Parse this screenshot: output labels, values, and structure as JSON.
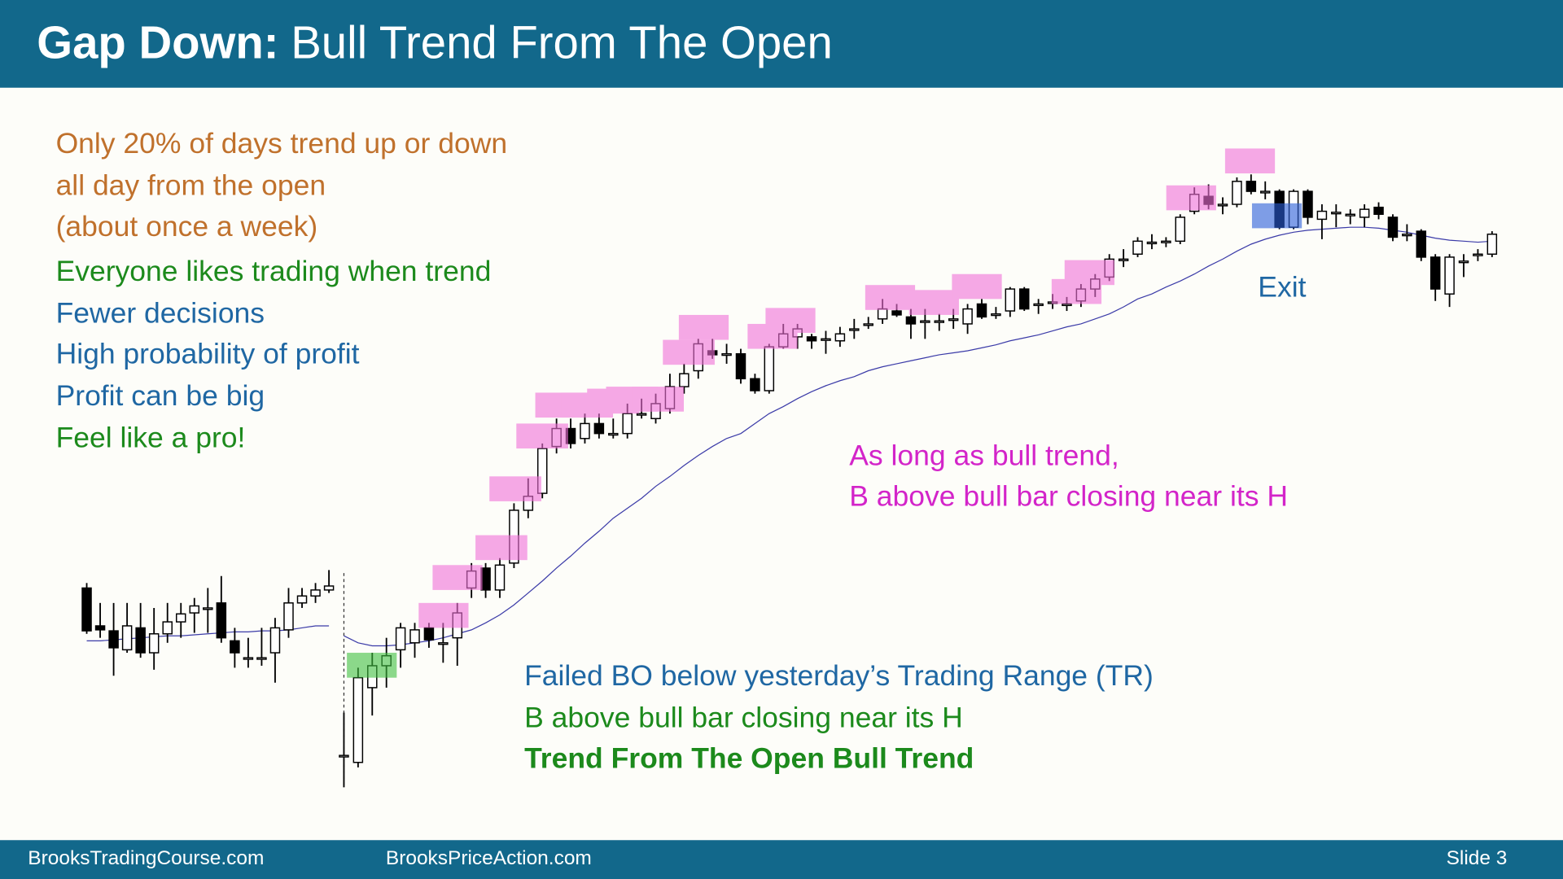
{
  "header": {
    "title_bold": "Gap Down:",
    "title_rest": "Bull Trend From The Open"
  },
  "notes": [
    "Only 20% of days trend up or down",
    "all day from the open",
    "(about once a week)",
    "Everyone likes trading when trend",
    "Fewer decisions",
    "High probability of profit",
    "Profit can be big",
    "Feel like a pro!"
  ],
  "annotations": {
    "middle": [
      "As long as bull trend,",
      "B above bull bar closing near its H"
    ],
    "exit": "Exit",
    "bottom": [
      "Failed BO below yesterday’s Trading Range (TR)",
      "B above bull bar closing near its H",
      "Trend From The Open Bull Trend"
    ]
  },
  "chart_data": {
    "type": "candlestick",
    "ylim": [
      0,
      900
    ],
    "candles": [
      [
        [
          310,
          315,
          264,
          267
        ],
        [
          272,
          295,
          260,
          268
        ],
        [
          267,
          295,
          222,
          250
        ],
        [
          248,
          295,
          245,
          272
        ],
        [
          270,
          295,
          240,
          245
        ],
        [
          245,
          290,
          228,
          264
        ],
        [
          264,
          295,
          255,
          276
        ],
        [
          276,
          295,
          260,
          284
        ],
        [
          285,
          300,
          265,
          292
        ],
        [
          290,
          310,
          265,
          290
        ],
        [
          295,
          322,
          255,
          260
        ],
        [
          257,
          270,
          230,
          245
        ],
        [
          240,
          260,
          230,
          240
        ],
        [
          240,
          270,
          232,
          240
        ],
        [
          245,
          280,
          215,
          270
        ],
        [
          268,
          310,
          260,
          295
        ],
        [
          295,
          310,
          290,
          302
        ],
        [
          302,
          315,
          295,
          308
        ],
        [
          308,
          328,
          305,
          312
        ]
      ],
      [
        [
          142,
          185,
          110,
          142
        ],
        [
          135,
          230,
          130,
          220
        ],
        [
          210,
          245,
          182,
          232
        ],
        [
          232,
          260,
          210,
          242
        ],
        [
          248,
          275,
          230,
          270
        ],
        [
          255,
          275,
          240,
          268
        ],
        [
          270,
          275,
          250,
          258
        ],
        [
          255,
          275,
          235,
          255
        ],
        [
          260,
          295,
          232,
          285
        ],
        [
          310,
          335,
          300,
          327
        ],
        [
          330,
          335,
          300,
          308
        ],
        [
          308,
          340,
          300,
          333
        ],
        [
          335,
          395,
          330,
          388
        ],
        [
          388,
          420,
          380,
          402
        ],
        [
          405,
          455,
          400,
          450
        ],
        [
          452,
          480,
          445,
          470
        ],
        [
          470,
          480,
          450,
          455
        ],
        [
          460,
          485,
          455,
          475
        ],
        [
          475,
          485,
          460,
          465
        ],
        [
          465,
          480,
          460,
          465
        ],
        [
          465,
          495,
          460,
          485
        ],
        [
          485,
          500,
          480,
          485
        ],
        [
          480,
          505,
          475,
          495
        ],
        [
          490,
          525,
          485,
          512
        ],
        [
          512,
          535,
          505,
          525
        ],
        [
          528,
          560,
          520,
          555
        ],
        [
          548,
          560,
          540,
          544
        ],
        [
          545,
          555,
          535,
          545
        ],
        [
          545,
          550,
          515,
          520
        ],
        [
          520,
          525,
          505,
          508
        ],
        [
          508,
          555,
          505,
          552
        ],
        [
          552,
          575,
          550,
          565
        ],
        [
          562,
          575,
          550,
          570
        ],
        [
          562,
          565,
          550,
          558
        ],
        [
          560,
          568,
          545,
          560
        ],
        [
          558,
          572,
          552,
          565
        ],
        [
          570,
          580,
          560,
          570
        ],
        [
          575,
          582,
          570,
          575
        ],
        [
          580,
          600,
          575,
          590
        ],
        [
          588,
          595,
          582,
          584
        ],
        [
          582,
          590,
          560,
          575
        ],
        [
          578,
          590,
          560,
          578
        ],
        [
          578,
          585,
          568,
          578
        ],
        [
          580,
          590,
          570,
          580
        ],
        [
          575,
          595,
          565,
          590
        ],
        [
          595,
          600,
          580,
          582
        ],
        [
          585,
          592,
          580,
          585
        ],
        [
          588,
          612,
          582,
          610
        ],
        [
          610,
          612,
          588,
          590
        ],
        [
          595,
          600,
          585,
          595
        ],
        [
          597,
          605,
          590,
          597
        ],
        [
          595,
          602,
          588,
          595
        ],
        [
          598,
          615,
          592,
          610
        ],
        [
          610,
          625,
          602,
          620
        ],
        [
          622,
          645,
          618,
          640
        ],
        [
          640,
          650,
          632,
          640
        ],
        [
          645,
          662,
          642,
          658
        ],
        [
          657,
          665,
          650,
          657
        ],
        [
          658,
          662,
          652,
          658
        ],
        [
          658,
          685,
          655,
          682
        ],
        [
          688,
          712,
          685,
          705
        ],
        [
          703,
          715,
          690,
          695
        ],
        [
          695,
          702,
          685,
          695
        ],
        [
          695,
          722,
          692,
          718
        ],
        [
          718,
          725,
          705,
          708
        ],
        [
          708,
          718,
          700,
          708
        ],
        [
          708,
          710,
          670,
          672
        ],
        [
          672,
          710,
          670,
          708
        ],
        [
          708,
          710,
          675,
          682
        ],
        [
          680,
          695,
          660,
          688
        ],
        [
          687,
          695,
          672,
          687
        ],
        [
          685,
          690,
          675,
          685
        ],
        [
          682,
          695,
          672,
          690
        ],
        [
          692,
          697,
          680,
          685
        ],
        [
          682,
          685,
          658,
          662
        ],
        [
          665,
          675,
          658,
          665
        ],
        [
          668,
          670,
          638,
          642
        ],
        [
          642,
          645,
          598,
          610
        ],
        [
          605,
          645,
          592,
          642
        ],
        [
          638,
          645,
          622,
          638
        ],
        [
          645,
          650,
          638,
          645
        ],
        [
          645,
          668,
          642,
          665
        ]
      ]
    ],
    "ema": [
      [
        257,
        257,
        258,
        259,
        260,
        261,
        262,
        262,
        263,
        264,
        265,
        266,
        266,
        267,
        267,
        268,
        270,
        272,
        272
      ],
      [
        262,
        255,
        252,
        252,
        253,
        255,
        257,
        260,
        264,
        268,
        275,
        283,
        293,
        305,
        317,
        330,
        342,
        355,
        367,
        380,
        390,
        400,
        412,
        422,
        433,
        443,
        452,
        460,
        465,
        475,
        485,
        492,
        500,
        507,
        513,
        518,
        522,
        528,
        532,
        535,
        538,
        541,
        544,
        546,
        548,
        551,
        554,
        558,
        561,
        564,
        568,
        572,
        575,
        580,
        585,
        592,
        600,
        605,
        612,
        618,
        625,
        633,
        640,
        648,
        655,
        660,
        664,
        667,
        669,
        670,
        671,
        672,
        672,
        671,
        669,
        667,
        664,
        661,
        659,
        658,
        657,
        658
      ]
    ]
  },
  "footer": {
    "left": "BrooksTradingCourse.com",
    "middle": "BrooksPriceAction.com",
    "slide": "Slide 3"
  }
}
